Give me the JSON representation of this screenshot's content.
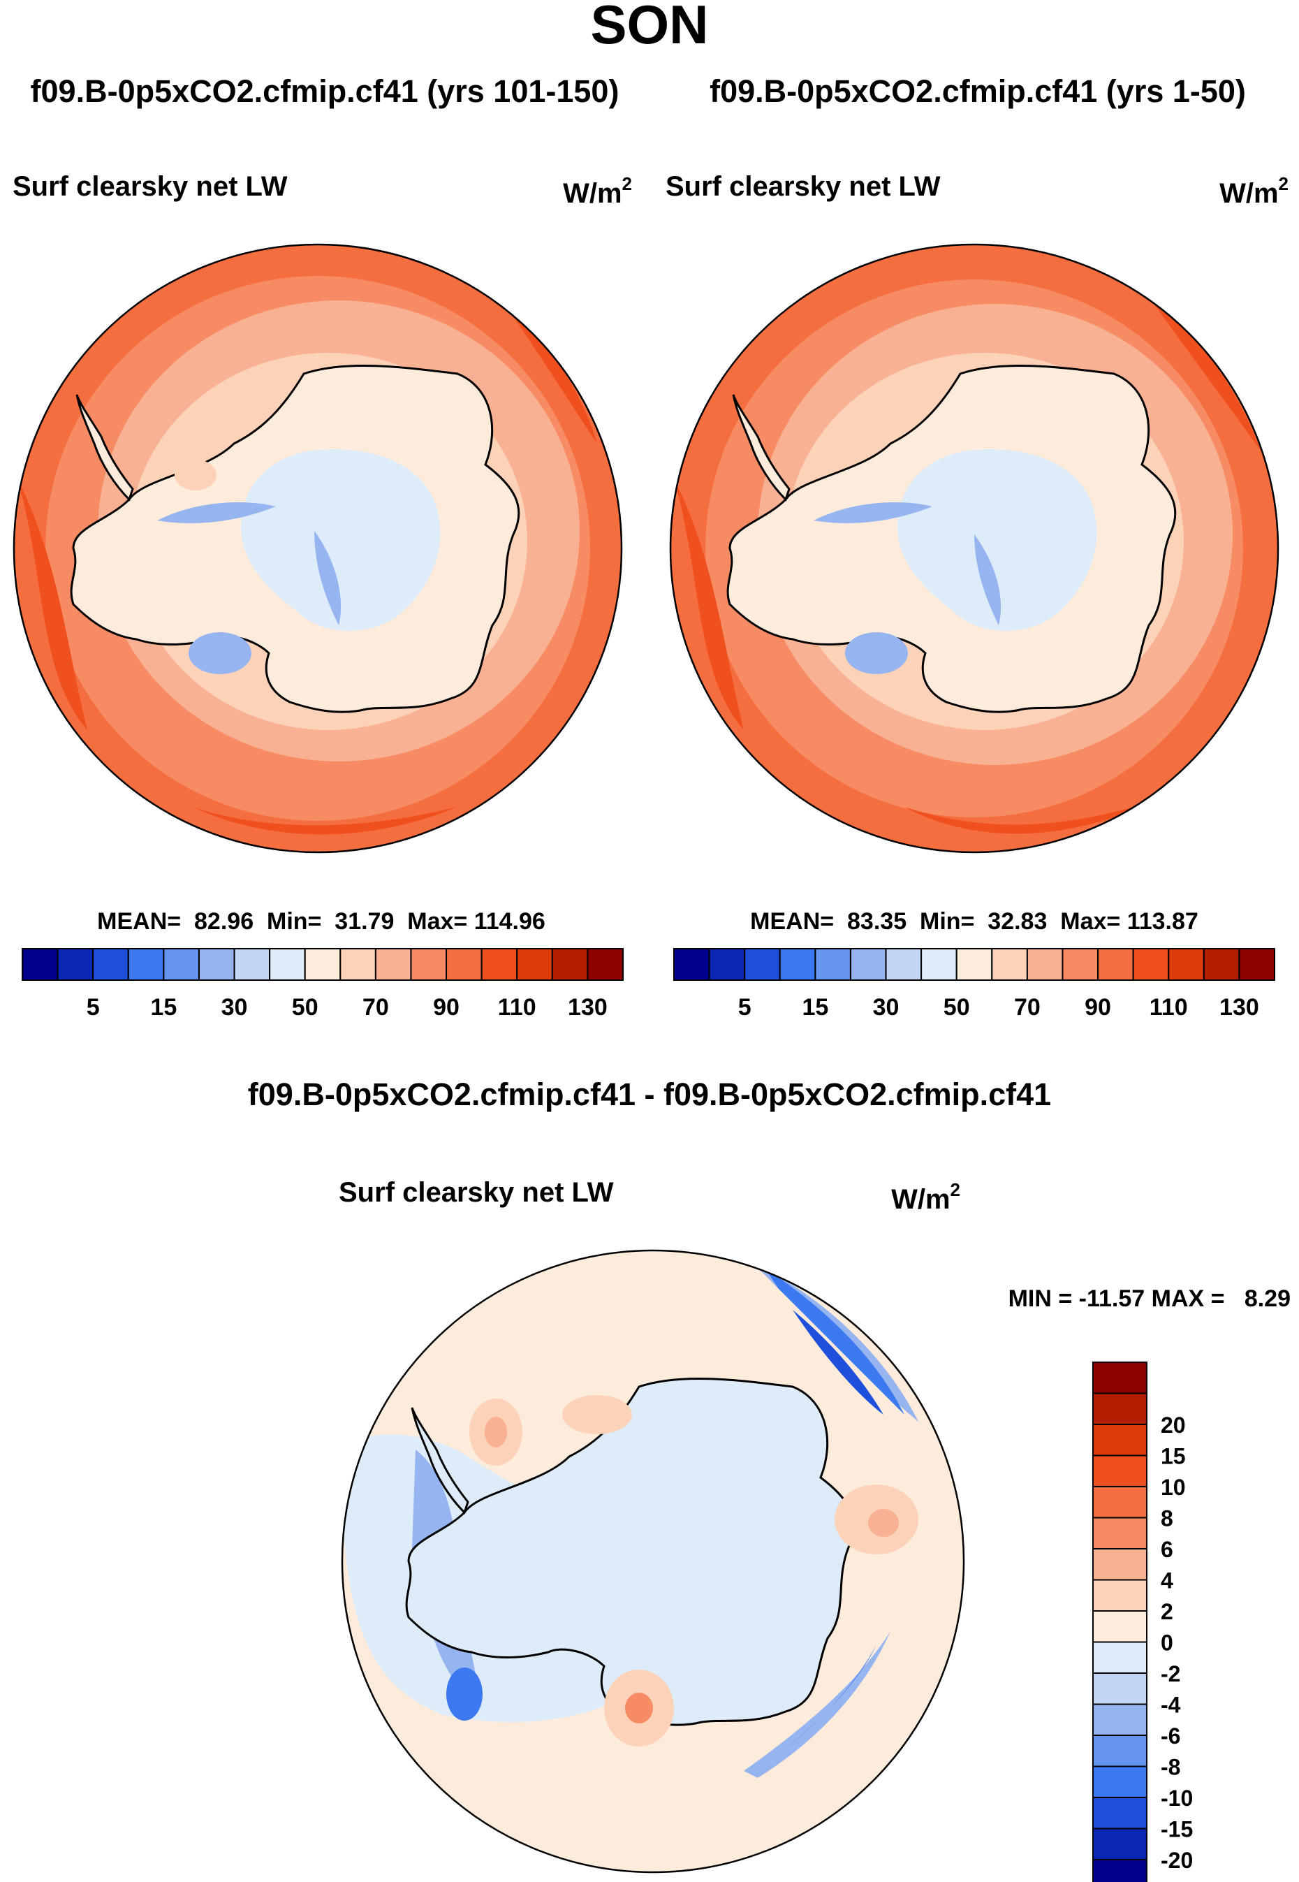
{
  "chart_data": {
    "type": "contour-map",
    "projection": "south-polar-stereographic",
    "figure_title": "SON",
    "panels": [
      {
        "id": "case1",
        "title": "f09.B-0p5xCO2.cfmip.cf41 (yrs 101-150)",
        "variable": "Surf clearsky net LW",
        "units_base": "W/m",
        "units_exp": "2",
        "stats_text": "MEAN=  82.96  Min=  31.79  Max= 114.96",
        "stats": {
          "mean": 82.96,
          "min": 31.79,
          "max": 114.96
        }
      },
      {
        "id": "case2",
        "title": "f09.B-0p5xCO2.cfmip.cf41 (yrs 1-50)",
        "variable": "Surf clearsky net LW",
        "units_base": "W/m",
        "units_exp": "2",
        "stats_text": "MEAN=  83.35  Min=  32.83  Max= 113.87",
        "stats": {
          "mean": 83.35,
          "min": 32.83,
          "max": 113.87
        }
      },
      {
        "id": "diff",
        "title": "f09.B-0p5xCO2.cfmip.cf41 - f09.B-0p5xCO2.cfmip.cf41",
        "variable": "Surf clearsky net LW",
        "units_base": "W/m",
        "units_exp": "2",
        "stats_text": "MIN = -11.57 MAX =   8.29",
        "stats": {
          "min": -11.57,
          "max": 8.29
        }
      }
    ],
    "abs_colorbar": {
      "orientation": "horizontal",
      "colors": [
        "#00008c",
        "#0a28b4",
        "#1e50dc",
        "#3c78f0",
        "#6496f0",
        "#96b4f0",
        "#c3d7f5",
        "#deecfa",
        "#fdebdc",
        "#fcd2b9",
        "#f9b193",
        "#f68b64",
        "#f56e3f",
        "#f0501e",
        "#dc3c0a",
        "#b41e00",
        "#8c0000"
      ],
      "ticks": [
        "5",
        "15",
        "30",
        "50",
        "70",
        "90",
        "110",
        "130"
      ]
    },
    "diff_colorbar": {
      "orientation": "vertical",
      "colors": [
        "#00008c",
        "#0a28b4",
        "#1e50dc",
        "#3c78f0",
        "#6496f0",
        "#96b4f0",
        "#c3d7f5",
        "#deecfa",
        "#fdebdc",
        "#fcd2b9",
        "#f9b193",
        "#f68b64",
        "#f56e3f",
        "#f0501e",
        "#dc3c0a",
        "#b41e00",
        "#8c0000"
      ],
      "ticks": [
        "-20",
        "-15",
        "-10",
        "-8",
        "-6",
        "-4",
        "-2",
        "0",
        "2",
        "4",
        "6",
        "8",
        "10",
        "15",
        "20"
      ]
    }
  }
}
